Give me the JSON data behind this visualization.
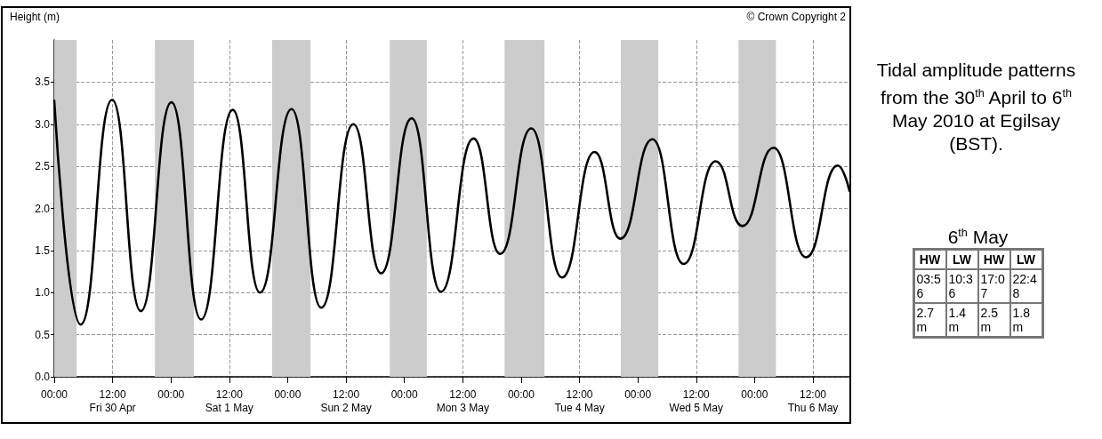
{
  "chart_data": [
    {
      "type": "line",
      "ylabel": "Height (m)",
      "annotations": [
        "© Crown Copyright 2"
      ],
      "series": [
        {
          "color": "#000000",
          "x": [
            "2010-04-30T00:00",
            "2010-04-30T05:26",
            "2010-04-30T11:54",
            "2010-04-30T17:48",
            "2010-05-01T00:06",
            "2010-05-01T06:12",
            "2010-05-01T12:42",
            "2010-05-01T18:18",
            "2010-05-02T00:48",
            "2010-05-02T06:54",
            "2010-05-02T13:30",
            "2010-05-02T19:12",
            "2010-05-03T01:30",
            "2010-05-03T07:30",
            "2010-05-03T14:12",
            "2010-05-03T19:42",
            "2010-05-04T02:06",
            "2010-05-04T08:24",
            "2010-05-04T15:06",
            "2010-05-04T20:24",
            "2010-05-05T03:00",
            "2010-05-05T09:24",
            "2010-05-05T16:00",
            "2010-05-05T21:30",
            "2010-05-06T03:54",
            "2010-05-06T10:36",
            "2010-05-06T17:06",
            "2010-05-06T19:30"
          ],
          "values": [
            3.28,
            0.62,
            3.29,
            0.78,
            3.26,
            0.68,
            3.17,
            1.0,
            3.18,
            0.82,
            3.0,
            1.23,
            3.07,
            1.01,
            2.83,
            1.46,
            2.95,
            1.18,
            2.67,
            1.64,
            2.82,
            1.34,
            2.56,
            1.79,
            2.72,
            1.42,
            2.51,
            2.21
          ]
        }
      ],
      "xlim": [
        "2010-04-30T00:00",
        "2010-05-06T19:30"
      ],
      "xticks": [
        {
          "value": "2010-04-30T00:00",
          "label": "00:00"
        },
        {
          "value": "2010-04-30T12:00",
          "label": "12:00\nFri 30 Apr"
        },
        {
          "value": "2010-05-01T00:00",
          "label": "00:00"
        },
        {
          "value": "2010-05-01T12:00",
          "label": "12:00\nSat 1 May"
        },
        {
          "value": "2010-05-02T00:00",
          "label": "00:00"
        },
        {
          "value": "2010-05-02T12:00",
          "label": "12:00\nSun 2 May"
        },
        {
          "value": "2010-05-03T00:00",
          "label": "00:00"
        },
        {
          "value": "2010-05-03T12:00",
          "label": "12:00\nMon 3 May"
        },
        {
          "value": "2010-05-04T00:00",
          "label": "00:00"
        },
        {
          "value": "2010-05-04T12:00",
          "label": "12:00\nTue 4 May"
        },
        {
          "value": "2010-05-05T00:00",
          "label": "00:00"
        },
        {
          "value": "2010-05-05T12:00",
          "label": "12:00\nWed 5 May"
        },
        {
          "value": "2010-05-06T00:00",
          "label": "00:00"
        },
        {
          "value": "2010-05-06T12:00",
          "label": "12:00\nThu 6 May"
        }
      ],
      "ylim": [
        0,
        4
      ],
      "yticks": [
        {
          "value": 0,
          "label": "0.0"
        },
        {
          "value": 0.5,
          "label": "0.5"
        },
        {
          "value": 1,
          "label": "1.0"
        },
        {
          "value": 1.5,
          "label": "1.5"
        },
        {
          "value": 2,
          "label": "2.0"
        },
        {
          "value": 2.5,
          "label": "2.5"
        },
        {
          "value": 3,
          "label": "3.0"
        },
        {
          "value": 3.5,
          "label": "3.5"
        }
      ],
      "bands": [
        {
          "axis": "x",
          "from": "2010-04-30T00:00",
          "to": "2010-04-30T04:36",
          "color": "#cccccc"
        },
        {
          "axis": "x",
          "from": "2010-04-30T20:42",
          "to": "2010-05-01T04:42",
          "color": "#cccccc"
        },
        {
          "axis": "x",
          "from": "2010-05-01T20:48",
          "to": "2010-05-02T04:42",
          "color": "#cccccc"
        },
        {
          "axis": "x",
          "from": "2010-05-02T21:00",
          "to": "2010-05-03T04:36",
          "color": "#cccccc"
        },
        {
          "axis": "x",
          "from": "2010-05-03T20:36",
          "to": "2010-05-04T04:48",
          "color": "#cccccc"
        },
        {
          "axis": "x",
          "from": "2010-05-04T20:30",
          "to": "2010-05-05T04:12",
          "color": "#cccccc"
        },
        {
          "axis": "x",
          "from": "2010-05-05T20:42",
          "to": "2010-05-06T04:24",
          "color": "#cccccc"
        }
      ],
      "grid": true,
      "marker": "none",
      "line_style": "solid"
    },
    {
      "type": "other",
      "title": "Tidal amplitude patterns from the 30$^{th}$ April to 6$^{th}$ May 2010 at Egilsay (BST).",
      "subtitle": "6$^{th}$ May",
      "categories": [
        "HW",
        "LW",
        "HW",
        "LW"
      ],
      "annotations": [
        "03:56",
        "10:36",
        "17:07",
        "22:48",
        "2.7 m",
        "1.4 m",
        "2.5 m",
        "1.8 m"
      ]
    }
  ]
}
